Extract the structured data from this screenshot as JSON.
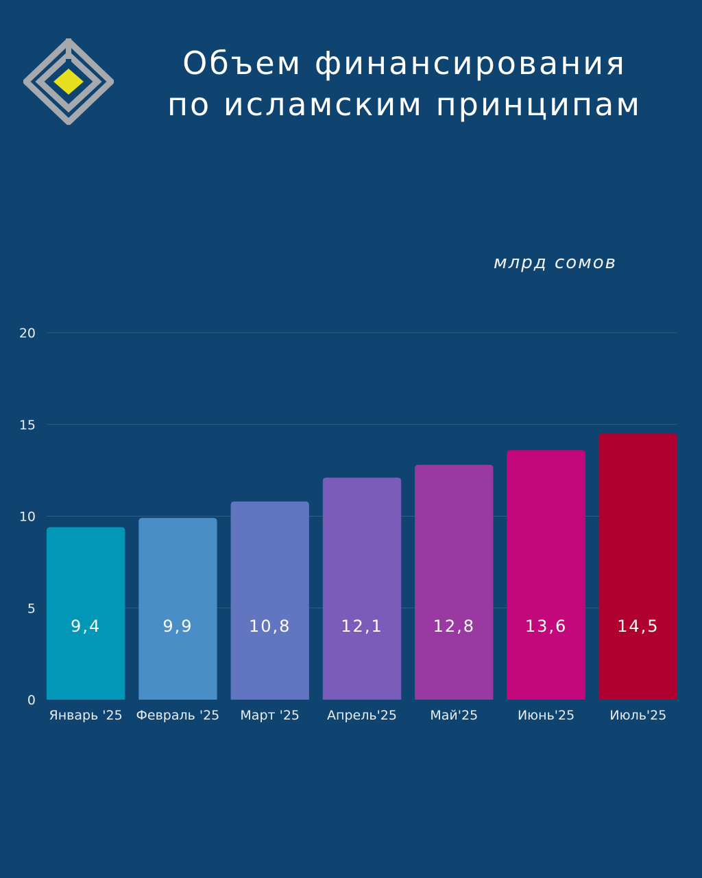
{
  "header": {
    "title_line1": "Объем финансирования",
    "title_line2": "по исламским принципам",
    "logo_icon": "diamond-logo-icon"
  },
  "colors": {
    "background": "#0f4470",
    "grid": "#2d5f88",
    "logo_gray": "#a6a9ad",
    "logo_yellow": "#e6e020"
  },
  "chart_data": {
    "type": "bar",
    "categories": [
      "Январь '25",
      "Февраль '25",
      "Март '25",
      "Апрель'25",
      "Май'25",
      "Июнь'25",
      "Июль'25"
    ],
    "values": [
      9.4,
      9.9,
      10.8,
      12.1,
      12.8,
      13.6,
      14.5
    ],
    "value_labels": [
      "9,4",
      "9,9",
      "10,8",
      "12,1",
      "12,8",
      "13,6",
      "14,5"
    ],
    "bar_colors": [
      "#0297b7",
      "#4a8ec8",
      "#6275c1",
      "#7c5cba",
      "#9a39a2",
      "#c2087a",
      "#b00030"
    ],
    "yticks": [
      "0",
      "5",
      "10",
      "15",
      "20"
    ],
    "ytick_values": [
      0,
      5,
      10,
      15,
      20
    ],
    "ylim": [
      0,
      20
    ],
    "unit_label": "млрд сомов",
    "grid": true,
    "legend": "none"
  }
}
